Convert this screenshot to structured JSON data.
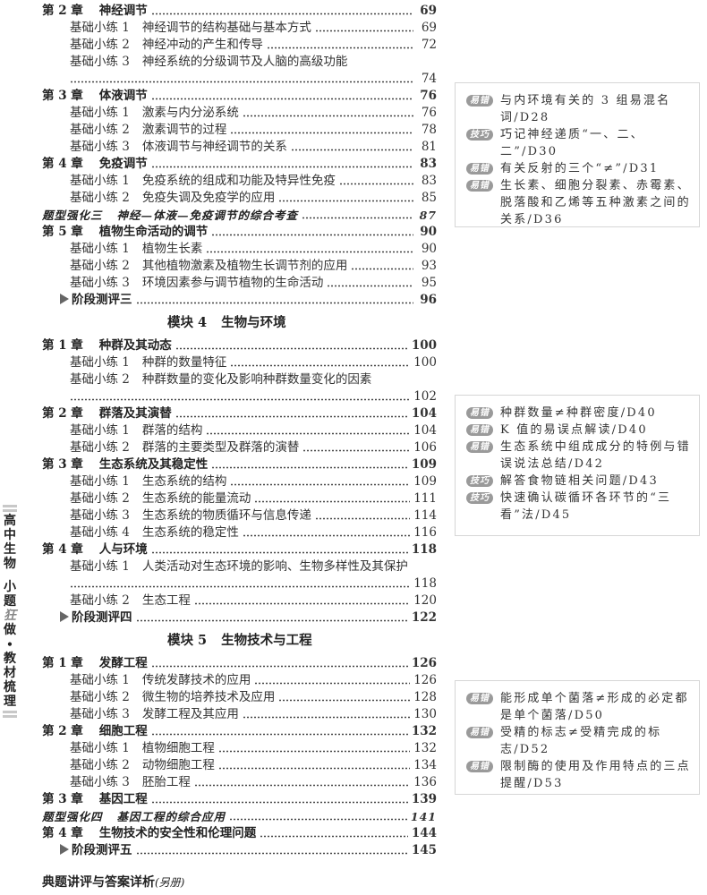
{
  "toc": [
    {
      "kind": "chapter",
      "num": "第 2 章",
      "title": "神经调节",
      "page": "69"
    },
    {
      "kind": "lesson",
      "num": "基础小练 1",
      "title": "神经调节的结构基础与基本方式",
      "page": "69"
    },
    {
      "kind": "lesson",
      "num": "基础小练 2",
      "title": "神经冲动的产生和传导",
      "page": "72"
    },
    {
      "kind": "lesson",
      "num": "基础小练 3",
      "title": "神经系统的分级调节及人脑的高级功能",
      "page": "74",
      "wrap": true
    },
    {
      "kind": "chapter",
      "num": "第 3 章",
      "title": "体液调节",
      "page": "76"
    },
    {
      "kind": "lesson",
      "num": "基础小练 1",
      "title": "激素与内分泌系统",
      "page": "76"
    },
    {
      "kind": "lesson",
      "num": "基础小练 2",
      "title": "激素调节的过程",
      "page": "78"
    },
    {
      "kind": "lesson",
      "num": "基础小练 3",
      "title": "体液调节与神经调节的关系",
      "page": "81"
    },
    {
      "kind": "chapter",
      "num": "第 4 章",
      "title": "免疫调节",
      "page": "83"
    },
    {
      "kind": "lesson",
      "num": "基础小练 1",
      "title": "免疫系统的组成和功能及特异性免疫",
      "page": "83"
    },
    {
      "kind": "lesson",
      "num": "基础小练 2",
      "title": "免疫失调及免疫学的应用",
      "page": "85"
    },
    {
      "kind": "special",
      "num": "题型强化三",
      "title": "神经—体液—免疫调节的综合考查",
      "page": "87"
    },
    {
      "kind": "chapter",
      "num": "第 5 章",
      "title": "植物生命活动的调节",
      "page": "90"
    },
    {
      "kind": "lesson",
      "num": "基础小练 1",
      "title": "植物生长素",
      "page": "90"
    },
    {
      "kind": "lesson",
      "num": "基础小练 2",
      "title": "其他植物激素及植物生长调节剂的应用",
      "page": "93"
    },
    {
      "kind": "lesson",
      "num": "基础小练 3",
      "title": "环境因素参与调节植物的生命活动",
      "page": "95"
    },
    {
      "kind": "test",
      "title": "阶段测评三",
      "page": "96"
    },
    {
      "kind": "module",
      "num": "模块 4",
      "title": "生物与环境"
    },
    {
      "kind": "chapter",
      "num": "第 1 章",
      "title": "种群及其动态",
      "page": "100"
    },
    {
      "kind": "lesson",
      "num": "基础小练 1",
      "title": "种群的数量特征",
      "page": "100"
    },
    {
      "kind": "lesson",
      "num": "基础小练 2",
      "title": "种群数量的变化及影响种群数量变化的因素",
      "page": "102",
      "wrap": true
    },
    {
      "kind": "chapter",
      "num": "第 2 章",
      "title": "群落及其演替",
      "page": "104"
    },
    {
      "kind": "lesson",
      "num": "基础小练 1",
      "title": "群落的结构",
      "page": "104"
    },
    {
      "kind": "lesson",
      "num": "基础小练 2",
      "title": "群落的主要类型及群落的演替",
      "page": "106"
    },
    {
      "kind": "chapter",
      "num": "第 3 章",
      "title": "生态系统及其稳定性",
      "page": "109"
    },
    {
      "kind": "lesson",
      "num": "基础小练 1",
      "title": "生态系统的结构",
      "page": "109"
    },
    {
      "kind": "lesson",
      "num": "基础小练 2",
      "title": "生态系统的能量流动",
      "page": "111"
    },
    {
      "kind": "lesson",
      "num": "基础小练 3",
      "title": "生态系统的物质循环与信息传递",
      "page": "114"
    },
    {
      "kind": "lesson",
      "num": "基础小练 4",
      "title": "生态系统的稳定性",
      "page": "116"
    },
    {
      "kind": "chapter",
      "num": "第 4 章",
      "title": "人与环境",
      "page": "118"
    },
    {
      "kind": "lesson",
      "num": "基础小练 1",
      "title": "人类活动对生态环境的影响、生物多样性及其保护",
      "page": "118",
      "wrap": true
    },
    {
      "kind": "lesson",
      "num": "基础小练 2",
      "title": "生态工程",
      "page": "120"
    },
    {
      "kind": "test",
      "title": "阶段测评四",
      "page": "122"
    },
    {
      "kind": "module",
      "num": "模块 5",
      "title": "生物技术与工程"
    },
    {
      "kind": "chapter",
      "num": "第 1 章",
      "title": "发酵工程",
      "page": "126"
    },
    {
      "kind": "lesson",
      "num": "基础小练 1",
      "title": "传统发酵技术的应用",
      "page": "126"
    },
    {
      "kind": "lesson",
      "num": "基础小练 2",
      "title": "微生物的培养技术及应用",
      "page": "128"
    },
    {
      "kind": "lesson",
      "num": "基础小练 3",
      "title": "发酵工程及其应用",
      "page": "130"
    },
    {
      "kind": "chapter",
      "num": "第 2 章",
      "title": "细胞工程",
      "page": "132"
    },
    {
      "kind": "lesson",
      "num": "基础小练 1",
      "title": "植物细胞工程",
      "page": "132"
    },
    {
      "kind": "lesson",
      "num": "基础小练 2",
      "title": "动物细胞工程",
      "page": "134"
    },
    {
      "kind": "lesson",
      "num": "基础小练 3",
      "title": "胚胎工程",
      "page": "136"
    },
    {
      "kind": "chapter",
      "num": "第 3 章",
      "title": "基因工程",
      "page": "139"
    },
    {
      "kind": "special",
      "num": "题型强化四",
      "title": "基因工程的综合应用",
      "page": "141"
    },
    {
      "kind": "chapter",
      "num": "第 4 章",
      "title": "生物技术的安全性和伦理问题",
      "page": "144"
    },
    {
      "kind": "test",
      "title": "阶段测评五",
      "page": "145"
    }
  ],
  "footer": {
    "title": "典题讲评与答案详析",
    "note": "(另册)"
  },
  "spine": {
    "subject": "高中生物",
    "brand_a": "小题",
    "brand_b": "狂",
    "brand_c": "做",
    "dot": "•",
    "series": "教材梳理"
  },
  "tip_boxes": [
    {
      "tips": [
        {
          "badge": "易错",
          "text": "与内环境有关的 3 组易混名词/D28"
        },
        {
          "badge": "技巧",
          "text": "巧记神经递质“一、二、二”/D30"
        },
        {
          "badge": "易错",
          "text": "有关反射的三个“≠”/D31"
        },
        {
          "badge": "易错",
          "text": "生长素、细胞分裂素、赤霉素、脱落酸和乙烯等五种激素之间的关系/D36"
        }
      ]
    },
    {
      "tips": [
        {
          "badge": "易错",
          "text": "种群数量≠种群密度/D40"
        },
        {
          "badge": "易错",
          "text": "K 值的易误点解读/D40"
        },
        {
          "badge": "易错",
          "text": "生态系统中组成成分的特例与错误说法总结/D42"
        },
        {
          "badge": "技巧",
          "text": "解答食物链相关问题/D43"
        },
        {
          "badge": "技巧",
          "text": "快速确认碳循环各环节的“三看”法/D45"
        }
      ]
    },
    {
      "tips": [
        {
          "badge": "易错",
          "text": "能形成单个菌落≠形成的必定都是单个菌落/D50"
        },
        {
          "badge": "易错",
          "text": "受精的标志≠受精完成的标志/D52"
        },
        {
          "badge": "易错",
          "text": "限制酶的使用及作用特点的三点提醒/D53"
        }
      ]
    }
  ]
}
